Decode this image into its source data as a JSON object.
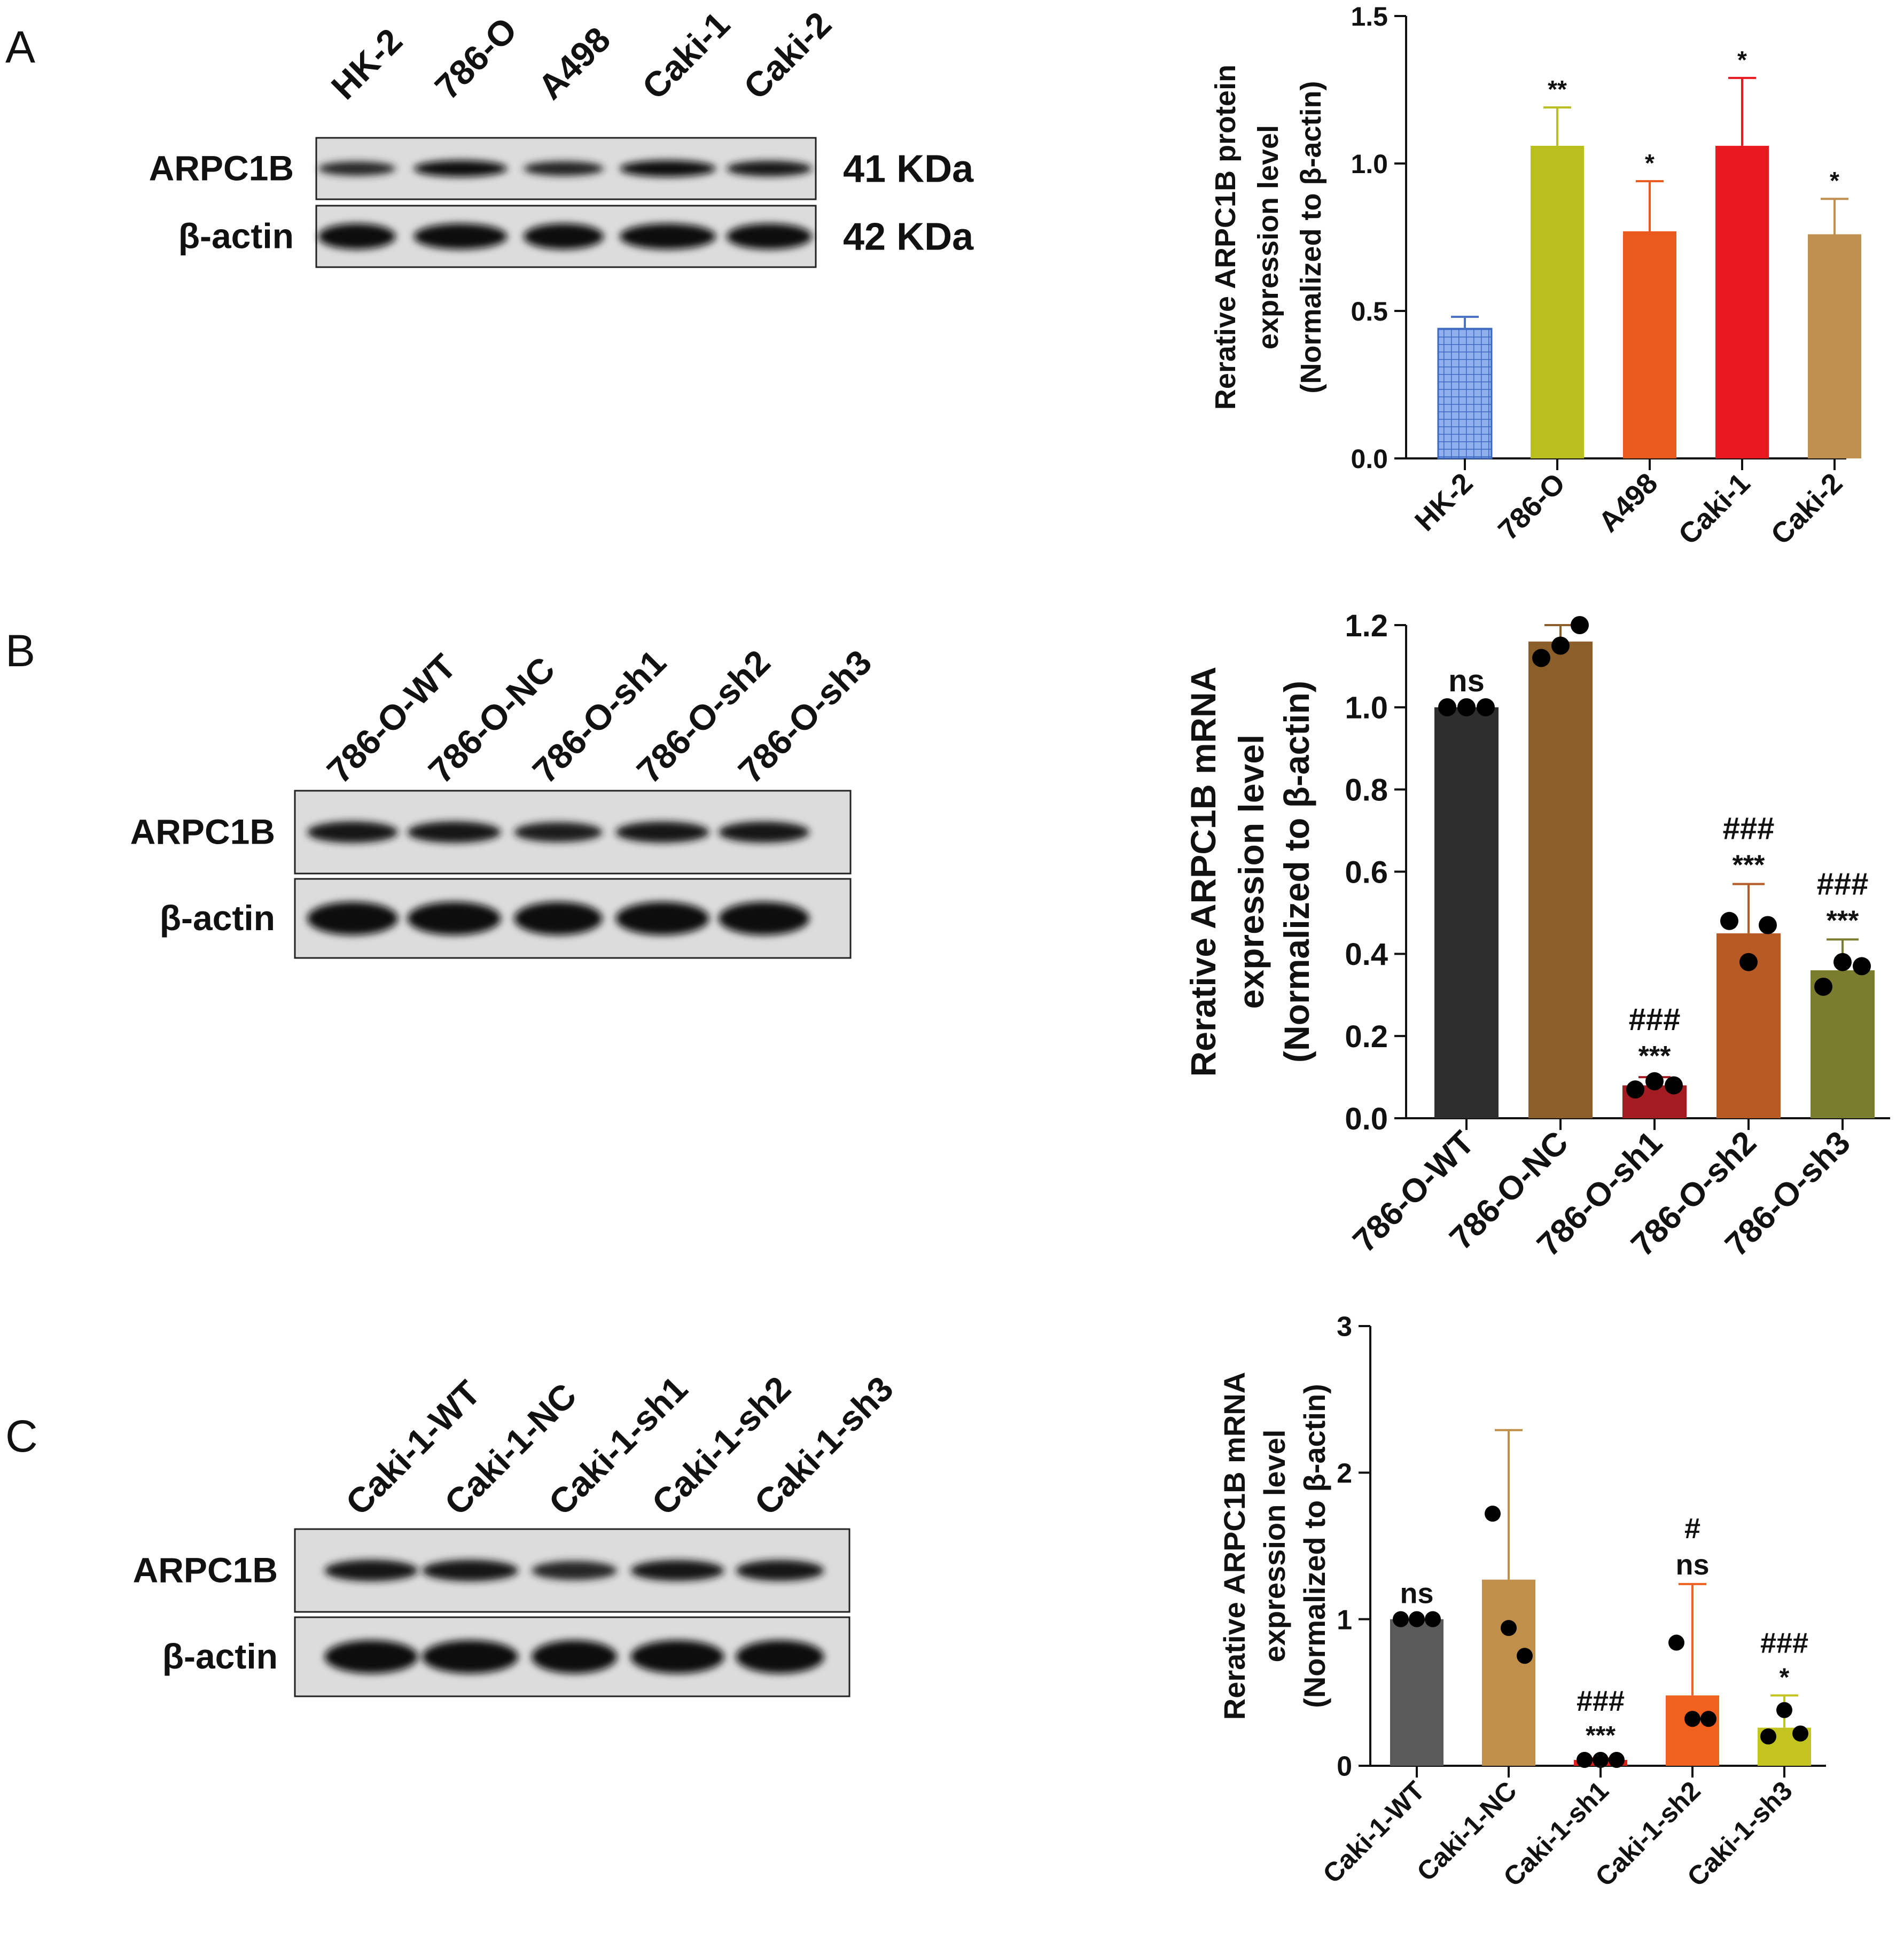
{
  "panels": [
    {
      "letter": "A",
      "blot": {
        "lanes": [
          "HK-2",
          "786-O",
          "A498",
          "Caki-1",
          "Caki-2"
        ],
        "rows": [
          {
            "label": "ARPC1B",
            "size": "41 KDa",
            "intensity": [
              0.55,
              0.9,
              0.6,
              0.9,
              0.75
            ]
          },
          {
            "label": "β-actin",
            "size": "42 KDa",
            "intensity": [
              1,
              1,
              1,
              1,
              1
            ]
          }
        ]
      },
      "chart": {
        "type": "bar",
        "ylabel": [
          "Rerative ARPC1B protein",
          "expression level",
          "(Normalized to β-actin)"
        ],
        "ylim": [
          0,
          1.5
        ],
        "ytick_labels": [
          "0.0",
          "0.5",
          "1.0",
          "1.5"
        ],
        "yticks": [
          0,
          0.5,
          1.0,
          1.5
        ],
        "categories": [
          "HK-2",
          "786-O",
          "A498",
          "Caki-1",
          "Caki-2"
        ],
        "values": [
          0.44,
          1.06,
          0.77,
          1.06,
          0.76
        ],
        "errors": [
          0.04,
          0.13,
          0.17,
          0.23,
          0.12
        ],
        "colors": [
          "#4a74c6",
          "#b8bf1e",
          "#ea5a1e",
          "#e8191f",
          "#c09050"
        ],
        "hatched": [
          true,
          false,
          false,
          false,
          false
        ],
        "annotations": [
          [
            ""
          ],
          [
            "**"
          ],
          [
            "*"
          ],
          [
            "*"
          ],
          [
            "*"
          ]
        ],
        "points": null
      }
    },
    {
      "letter": "B",
      "blot": {
        "lanes": [
          "786-O-WT",
          "786-O-NC",
          "786-O-sh1",
          "786-O-sh2",
          "786-O-sh3"
        ],
        "rows": [
          {
            "label": "ARPC1B",
            "size": "",
            "intensity": [
              0.8,
              0.8,
              0.65,
              0.78,
              0.78
            ]
          },
          {
            "label": "β-actin",
            "size": "",
            "intensity": [
              1,
              1,
              1,
              1,
              1
            ]
          }
        ]
      },
      "chart": {
        "type": "bar",
        "ylabel": [
          "Rerative ARPC1B mRNA",
          "expression level",
          "(Normalized to β-actin)"
        ],
        "ylim": [
          0,
          1.2
        ],
        "ytick_labels": [
          "0.0",
          "0.2",
          "0.4",
          "0.6",
          "0.8",
          "1.0",
          "1.2"
        ],
        "yticks": [
          0,
          0.2,
          0.4,
          0.6,
          0.8,
          1.0,
          1.2
        ],
        "categories": [
          "786-O-WT",
          "786-O-NC",
          "786-O-sh1",
          "786-O-sh2",
          "786-O-sh3"
        ],
        "values": [
          1.0,
          1.16,
          0.08,
          0.45,
          0.36
        ],
        "errors": [
          0.0,
          0.04,
          0.02,
          0.12,
          0.075
        ],
        "colors": [
          "#2e2e2e",
          "#8c5e2a",
          "#a31c22",
          "#b85a24",
          "#7a7d2e"
        ],
        "hatched": [
          false,
          false,
          false,
          false,
          false
        ],
        "annotations": [
          [
            "ns"
          ],
          [
            ""
          ],
          [
            "###",
            "***"
          ],
          [
            "###",
            "***"
          ],
          [
            "###",
            "***"
          ]
        ],
        "points": [
          [
            1.0,
            1.0,
            1.0
          ],
          [
            1.12,
            1.15,
            1.2
          ],
          [
            0.07,
            0.09,
            0.08
          ],
          [
            0.48,
            0.38,
            0.47
          ],
          [
            0.32,
            0.38,
            0.37
          ]
        ]
      }
    },
    {
      "letter": "C",
      "blot": {
        "lanes": [
          "Caki-1-WT",
          "Caki-1-NC",
          "Caki-1-sh1",
          "Caki-1-sh2",
          "Caki-1-sh3"
        ],
        "rows": [
          {
            "label": "ARPC1B",
            "size": "",
            "intensity": [
              0.8,
              0.8,
              0.55,
              0.75,
              0.75
            ]
          },
          {
            "label": "β-actin",
            "size": "",
            "intensity": [
              1,
              1,
              1,
              1,
              1
            ]
          }
        ]
      },
      "chart": {
        "type": "bar",
        "ylabel": [
          "Rerative ARPC1B mRNA",
          "expression level",
          "(Normalized to β-actin)"
        ],
        "ylim": [
          0,
          3
        ],
        "ytick_labels": [
          "0",
          "1",
          "2",
          "3"
        ],
        "yticks": [
          0,
          1,
          2,
          3
        ],
        "categories": [
          "Caki-1-WT",
          "Caki-1-NC",
          "Caki-1-sh1",
          "Caki-1-sh2",
          "Caki-1-sh3"
        ],
        "values": [
          1.0,
          1.27,
          0.04,
          0.48,
          0.26
        ],
        "errors": [
          0.0,
          1.02,
          0.01,
          0.76,
          0.22
        ],
        "colors": [
          "#5a5a5a",
          "#c0904a",
          "#e0201a",
          "#f0601e",
          "#c3c420"
        ],
        "hatched": [
          false,
          false,
          false,
          false,
          false
        ],
        "annotations": [
          [
            "ns"
          ],
          [
            ""
          ],
          [
            "###",
            "***"
          ],
          [
            "#",
            "ns"
          ],
          [
            "###",
            "*"
          ]
        ],
        "points": [
          [
            1.0,
            1.0,
            1.0
          ],
          [
            1.72,
            0.94,
            0.75
          ],
          [
            0.04,
            0.04,
            0.04
          ],
          [
            0.84,
            0.32,
            0.32
          ],
          [
            0.2,
            0.38,
            0.22
          ]
        ]
      }
    }
  ]
}
